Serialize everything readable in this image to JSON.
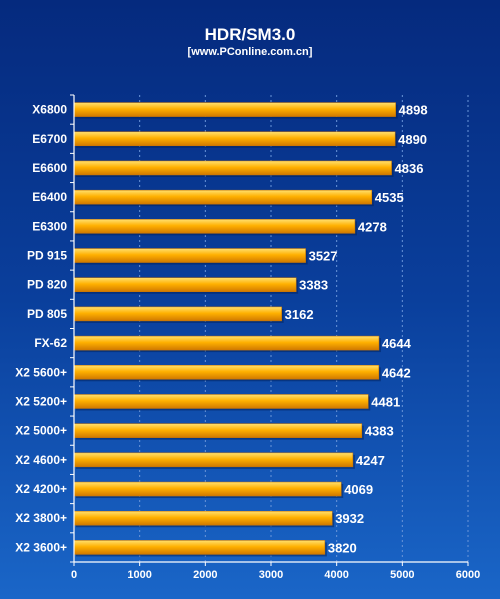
{
  "chart_data": {
    "type": "bar",
    "orientation": "horizontal",
    "title": "HDR/SM3.0",
    "subtitle": "[www.PConline.com.cn]",
    "categories": [
      "X6800",
      "E6700",
      "E6600",
      "E6400",
      "E6300",
      "PD 915",
      "PD 820",
      "PD 805",
      "FX-62",
      "X2 5600+",
      "X2 5200+",
      "X2 5000+",
      "X2 4600+",
      "X2 4200+",
      "X2 3800+",
      "X2 3600+"
    ],
    "values": [
      4898,
      4890,
      4836,
      4535,
      4278,
      3527,
      3383,
      3162,
      4644,
      4642,
      4481,
      4383,
      4247,
      4069,
      3932,
      3820
    ],
    "xlim": [
      0,
      6000
    ],
    "xticks": [
      0,
      1000,
      2000,
      3000,
      4000,
      5000,
      6000
    ],
    "xtick_labels": [
      "0",
      "1000",
      "2000",
      "3000",
      "4000",
      "5000",
      "6000"
    ],
    "xlabel": "",
    "ylabel": "",
    "grid": true,
    "legend": false,
    "colors": {
      "bar": "#ffb000",
      "bar_highlight": "#ffe070",
      "bar_shadow": "#d07800",
      "grid": "#6a95d8",
      "axis": "#ffffff",
      "text": "#ffffff"
    }
  }
}
